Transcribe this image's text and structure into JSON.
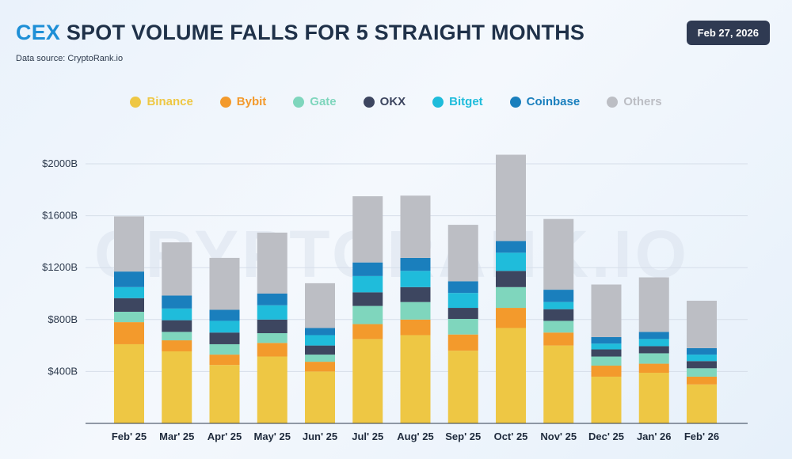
{
  "header": {
    "title_accent": "CEX",
    "title_rest": "SPOT VOLUME FALLS FOR 5 STRAIGHT MONTHS",
    "data_source": "Data source: CryptoRank.io",
    "date": "Feb 27, 2026"
  },
  "watermark": "CRYPTORANK.IO",
  "colors": {
    "accent": "#1e8fd6",
    "Binance": "#eec744",
    "Bybit": "#f39a2c",
    "Gate": "#7fd6bd",
    "OKX": "#3d4660",
    "Bitget": "#1fbcdb",
    "Coinbase": "#1a7fbd",
    "Others": "#bcbec4"
  },
  "chart_data": {
    "type": "bar",
    "stacked": true,
    "title": "CEX SPOT VOLUME FALLS FOR 5 STRAIGHT MONTHS",
    "xlabel": "",
    "ylabel": "",
    "ylim": [
      0,
      2000
    ],
    "yticks": [
      400,
      800,
      1200,
      1600,
      2000
    ],
    "ytick_labels": [
      "$400B",
      "$800B",
      "$1200B",
      "$1600B",
      "$2000B"
    ],
    "grid": true,
    "legend_position": "top",
    "categories": [
      "Feb' 25",
      "Mar' 25",
      "Apr' 25",
      "May' 25",
      "Jun' 25",
      "Jul' 25",
      "Aug' 25",
      "Sep' 25",
      "Oct' 25",
      "Nov' 25",
      "Dec' 25",
      "Jan' 26",
      "Feb' 26"
    ],
    "series": [
      {
        "name": "Binance",
        "values": [
          610,
          555,
          450,
          515,
          400,
          650,
          680,
          560,
          735,
          600,
          360,
          390,
          300
        ]
      },
      {
        "name": "Bybit",
        "values": [
          170,
          85,
          80,
          105,
          75,
          115,
          120,
          125,
          155,
          100,
          85,
          70,
          60
        ]
      },
      {
        "name": "Gate",
        "values": [
          80,
          65,
          80,
          75,
          55,
          140,
          135,
          120,
          160,
          90,
          70,
          80,
          65
        ]
      },
      {
        "name": "OKX",
        "values": [
          105,
          90,
          90,
          105,
          70,
          105,
          115,
          85,
          125,
          90,
          55,
          55,
          55
        ]
      },
      {
        "name": "Bitget",
        "values": [
          85,
          90,
          90,
          110,
          80,
          125,
          125,
          115,
          140,
          55,
          45,
          55,
          50
        ]
      },
      {
        "name": "Coinbase",
        "values": [
          120,
          100,
          85,
          90,
          55,
          105,
          100,
          90,
          90,
          95,
          50,
          55,
          50
        ]
      },
      {
        "name": "Others",
        "values": [
          425,
          410,
          400,
          470,
          345,
          510,
          480,
          435,
          665,
          545,
          405,
          420,
          365
        ]
      }
    ]
  }
}
